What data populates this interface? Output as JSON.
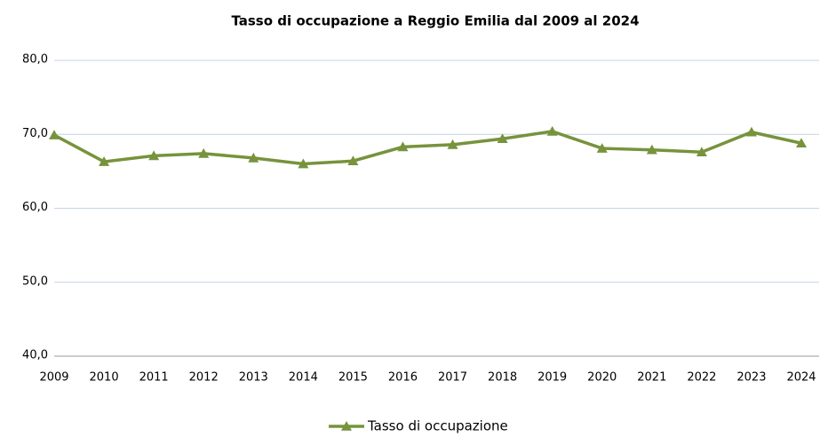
{
  "chart_data": {
    "type": "line",
    "title": "Tasso  di occupazione  a Reggio Emilia  dal 2009 al 2024",
    "categories": [
      "2009",
      "2010",
      "2011",
      "2012",
      "2013",
      "2014",
      "2015",
      "2016",
      "2017",
      "2018",
      "2019",
      "2020",
      "2021",
      "2022",
      "2023",
      "2024"
    ],
    "series": [
      {
        "name": "Tasso di occupazione",
        "color": "#77933c",
        "values": [
          69.9,
          66.3,
          67.1,
          67.4,
          66.8,
          66.0,
          66.4,
          68.3,
          68.6,
          69.4,
          70.4,
          68.1,
          67.9,
          67.6,
          70.3,
          68.8
        ]
      }
    ],
    "ylim": [
      40,
      80
    ],
    "yticks": [
      {
        "value": 40,
        "label": "40,0"
      },
      {
        "value": 50,
        "label": "50,0"
      },
      {
        "value": 60,
        "label": "60,0"
      },
      {
        "value": 70,
        "label": "70,0"
      },
      {
        "value": 80,
        "label": "80,0"
      }
    ],
    "grid": true,
    "legend": "bottom"
  }
}
